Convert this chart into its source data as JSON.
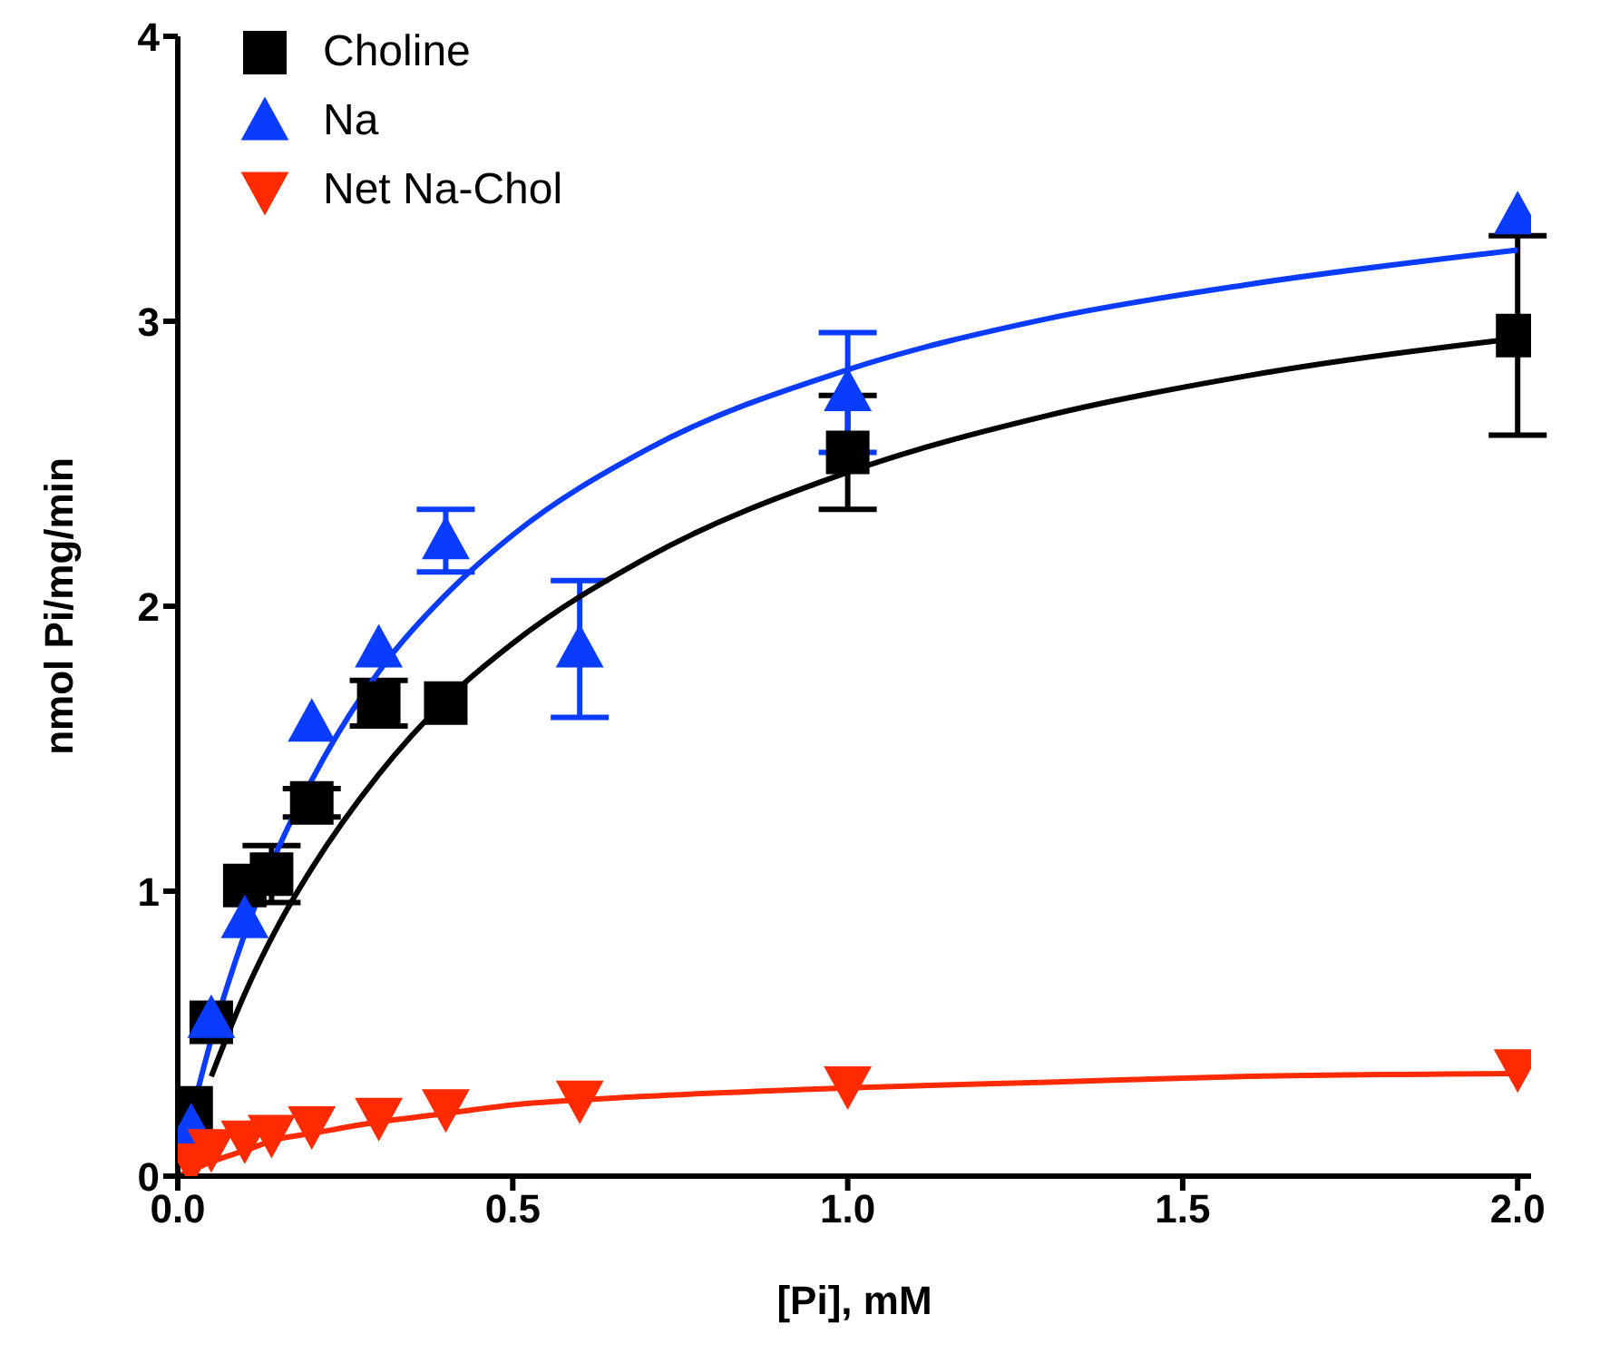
{
  "chart_data": {
    "type": "scatter",
    "xlabel": "[Pi], mM",
    "ylabel": "nmol Pi/mg/min",
    "xlim": [
      0,
      2.02
    ],
    "xticks": [
      {
        "value": 0,
        "label": "0.0"
      },
      {
        "value": 0.5,
        "label": "0.5"
      },
      {
        "value": 1,
        "label": "1.0"
      },
      {
        "value": 1.5,
        "label": "1.5"
      },
      {
        "value": 2,
        "label": "2.0"
      }
    ],
    "ylim": [
      0,
      4
    ],
    "yticks": [
      0,
      1,
      2,
      3,
      4
    ],
    "grid": false,
    "legend": "top left",
    "series": [
      {
        "name": "Choline",
        "marker": "square",
        "color": "#000000",
        "x": [
          0.02,
          0.05,
          0.1,
          0.14,
          0.2,
          0.3,
          0.4,
          1.0,
          2.0
        ],
        "values": [
          0.24,
          0.54,
          1.02,
          1.06,
          1.31,
          1.66,
          1.66,
          2.54,
          2.95
        ],
        "errors": [
          null,
          null,
          null,
          0.1,
          0.05,
          0.08,
          null,
          0.2,
          0.35
        ]
      },
      {
        "name": "Na",
        "marker": "triangle",
        "color": "#0a3cff",
        "x": [
          0.02,
          0.05,
          0.1,
          0.2,
          0.3,
          0.4,
          0.6,
          1.0,
          2.0
        ],
        "values": [
          0.17,
          0.55,
          0.9,
          1.59,
          1.85,
          2.23,
          1.85,
          2.75,
          3.37
        ],
        "errors": [
          null,
          null,
          null,
          null,
          null,
          0.11,
          0.24,
          0.21,
          null
        ]
      },
      {
        "name": "Net Na-Chol",
        "marker": "triangle-down",
        "color": "#ff2a00",
        "x": [
          0.02,
          0.05,
          0.1,
          0.14,
          0.2,
          0.3,
          0.4,
          0.6,
          1.0,
          2.0
        ],
        "values": [
          0.05,
          0.1,
          0.13,
          0.15,
          0.18,
          0.21,
          0.24,
          0.27,
          0.32,
          0.38
        ]
      },
      {
        "type": "line",
        "marker": "none",
        "color": "#000000",
        "x": [
          0.05,
          0.1,
          0.15,
          0.2,
          0.3,
          0.4,
          0.5,
          0.7,
          1.0,
          1.3,
          1.6,
          2.0
        ],
        "values": [
          0.35,
          0.64,
          0.88,
          1.08,
          1.41,
          1.67,
          1.87,
          2.17,
          2.47,
          2.67,
          2.81,
          2.94
        ]
      },
      {
        "type": "line",
        "marker": "none",
        "color": "#0a3cff",
        "x": [
          0.02,
          0.05,
          0.1,
          0.15,
          0.2,
          0.3,
          0.4,
          0.5,
          0.7,
          1.0,
          1.3,
          1.6,
          2.0
        ],
        "values": [
          0.21,
          0.48,
          0.85,
          1.15,
          1.39,
          1.77,
          2.04,
          2.25,
          2.55,
          2.83,
          3.01,
          3.13,
          3.25
        ]
      },
      {
        "type": "line",
        "marker": "none",
        "color": "#ff2a00",
        "x": [
          0,
          0.02,
          0.05,
          0.1,
          0.15,
          0.2,
          0.3,
          0.4,
          0.5,
          0.7,
          1.0,
          1.3,
          1.6,
          2.0
        ],
        "values": [
          0,
          0.02,
          0.05,
          0.09,
          0.13,
          0.15,
          0.19,
          0.22,
          0.25,
          0.28,
          0.31,
          0.33,
          0.35,
          0.36
        ]
      }
    ]
  }
}
